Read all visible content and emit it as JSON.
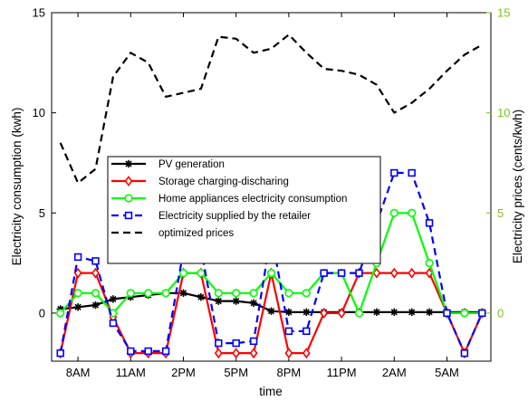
{
  "chart_data": {
    "type": "line",
    "xlabel": "time",
    "ylabel_left": "Electricity consumption (kwh)",
    "ylabel_right": "Electricity prices (cents/kwh)",
    "right_axis_color": "#7dc21e",
    "x": [
      7,
      8,
      9,
      10,
      11,
      12,
      13,
      14,
      15,
      16,
      17,
      18,
      19,
      20,
      21,
      22,
      23,
      24,
      25,
      26,
      27,
      28,
      29,
      30,
      31
    ],
    "xticks": [
      8,
      11,
      14,
      17,
      20,
      23,
      26,
      29
    ],
    "xtick_labels": [
      "8AM",
      "11AM",
      "2PM",
      "5PM",
      "8PM",
      "11PM",
      "2AM",
      "5AM"
    ],
    "xlim": [
      6.5,
      31.5
    ],
    "ylim_left": [
      -2.4,
      15
    ],
    "yticks_left": [
      0,
      5,
      10,
      15
    ],
    "ylim_right": [
      -2.4,
      15
    ],
    "yticks_right": [
      0,
      5,
      10,
      15
    ],
    "legend": {
      "position": "upper-left-center"
    },
    "series": [
      {
        "name": "PV generation",
        "axis": "left",
        "color": "#000000",
        "dash": "solid",
        "marker": "asterisk",
        "values": [
          0.2,
          0.3,
          0.4,
          0.7,
          0.8,
          0.9,
          1.0,
          1.0,
          0.8,
          0.6,
          0.6,
          0.5,
          0.1,
          0.05,
          0.05,
          0.05,
          0.05,
          0.05,
          0.05,
          0.05,
          0.05,
          0.05,
          0.05,
          0.05,
          0.05
        ]
      },
      {
        "name": "Storage charging-discharing",
        "axis": "left",
        "color": "#ff0000",
        "dash": "solid",
        "marker": "diamond",
        "values": [
          -2,
          2,
          2,
          -0.2,
          -2,
          -2,
          -2,
          2,
          2,
          -2,
          -2,
          -2,
          2,
          -2,
          -2,
          0,
          0,
          2,
          2,
          2,
          2,
          2,
          0,
          -2,
          0
        ]
      },
      {
        "name": "Home appliances electricity consumption",
        "axis": "left",
        "color": "#00ff00",
        "dash": "solid",
        "marker": "circle",
        "values": [
          0,
          1,
          1,
          0,
          1,
          1,
          1,
          2,
          2,
          1,
          1,
          1,
          2,
          1,
          1,
          2,
          2,
          0,
          2.5,
          5,
          5,
          2.5,
          0,
          0,
          0
        ]
      },
      {
        "name": "Electricity supplied by the retailer",
        "axis": "left",
        "color": "#0000ff",
        "dash": "dashed",
        "marker": "square",
        "values": [
          -2,
          2.8,
          2.6,
          -0.5,
          -1.9,
          -1.9,
          -1.9,
          3.1,
          3.2,
          -1.5,
          -1.5,
          -1.4,
          4.0,
          -0.9,
          -0.9,
          2.0,
          2.0,
          2.0,
          4.5,
          7.0,
          7.0,
          4.5,
          0,
          -2,
          0
        ]
      },
      {
        "name": "optimized prices",
        "axis": "right",
        "color": "#000000",
        "dash": "dashed",
        "marker": "none",
        "values": [
          8.5,
          6.5,
          7.2,
          11.8,
          13,
          12.5,
          10.8,
          11,
          11.2,
          13.8,
          13.7,
          13,
          13.2,
          13.9,
          13,
          12.2,
          12.1,
          11.9,
          11.4,
          10,
          10.5,
          11.2,
          12.1,
          12.9,
          13.4
        ]
      }
    ]
  }
}
